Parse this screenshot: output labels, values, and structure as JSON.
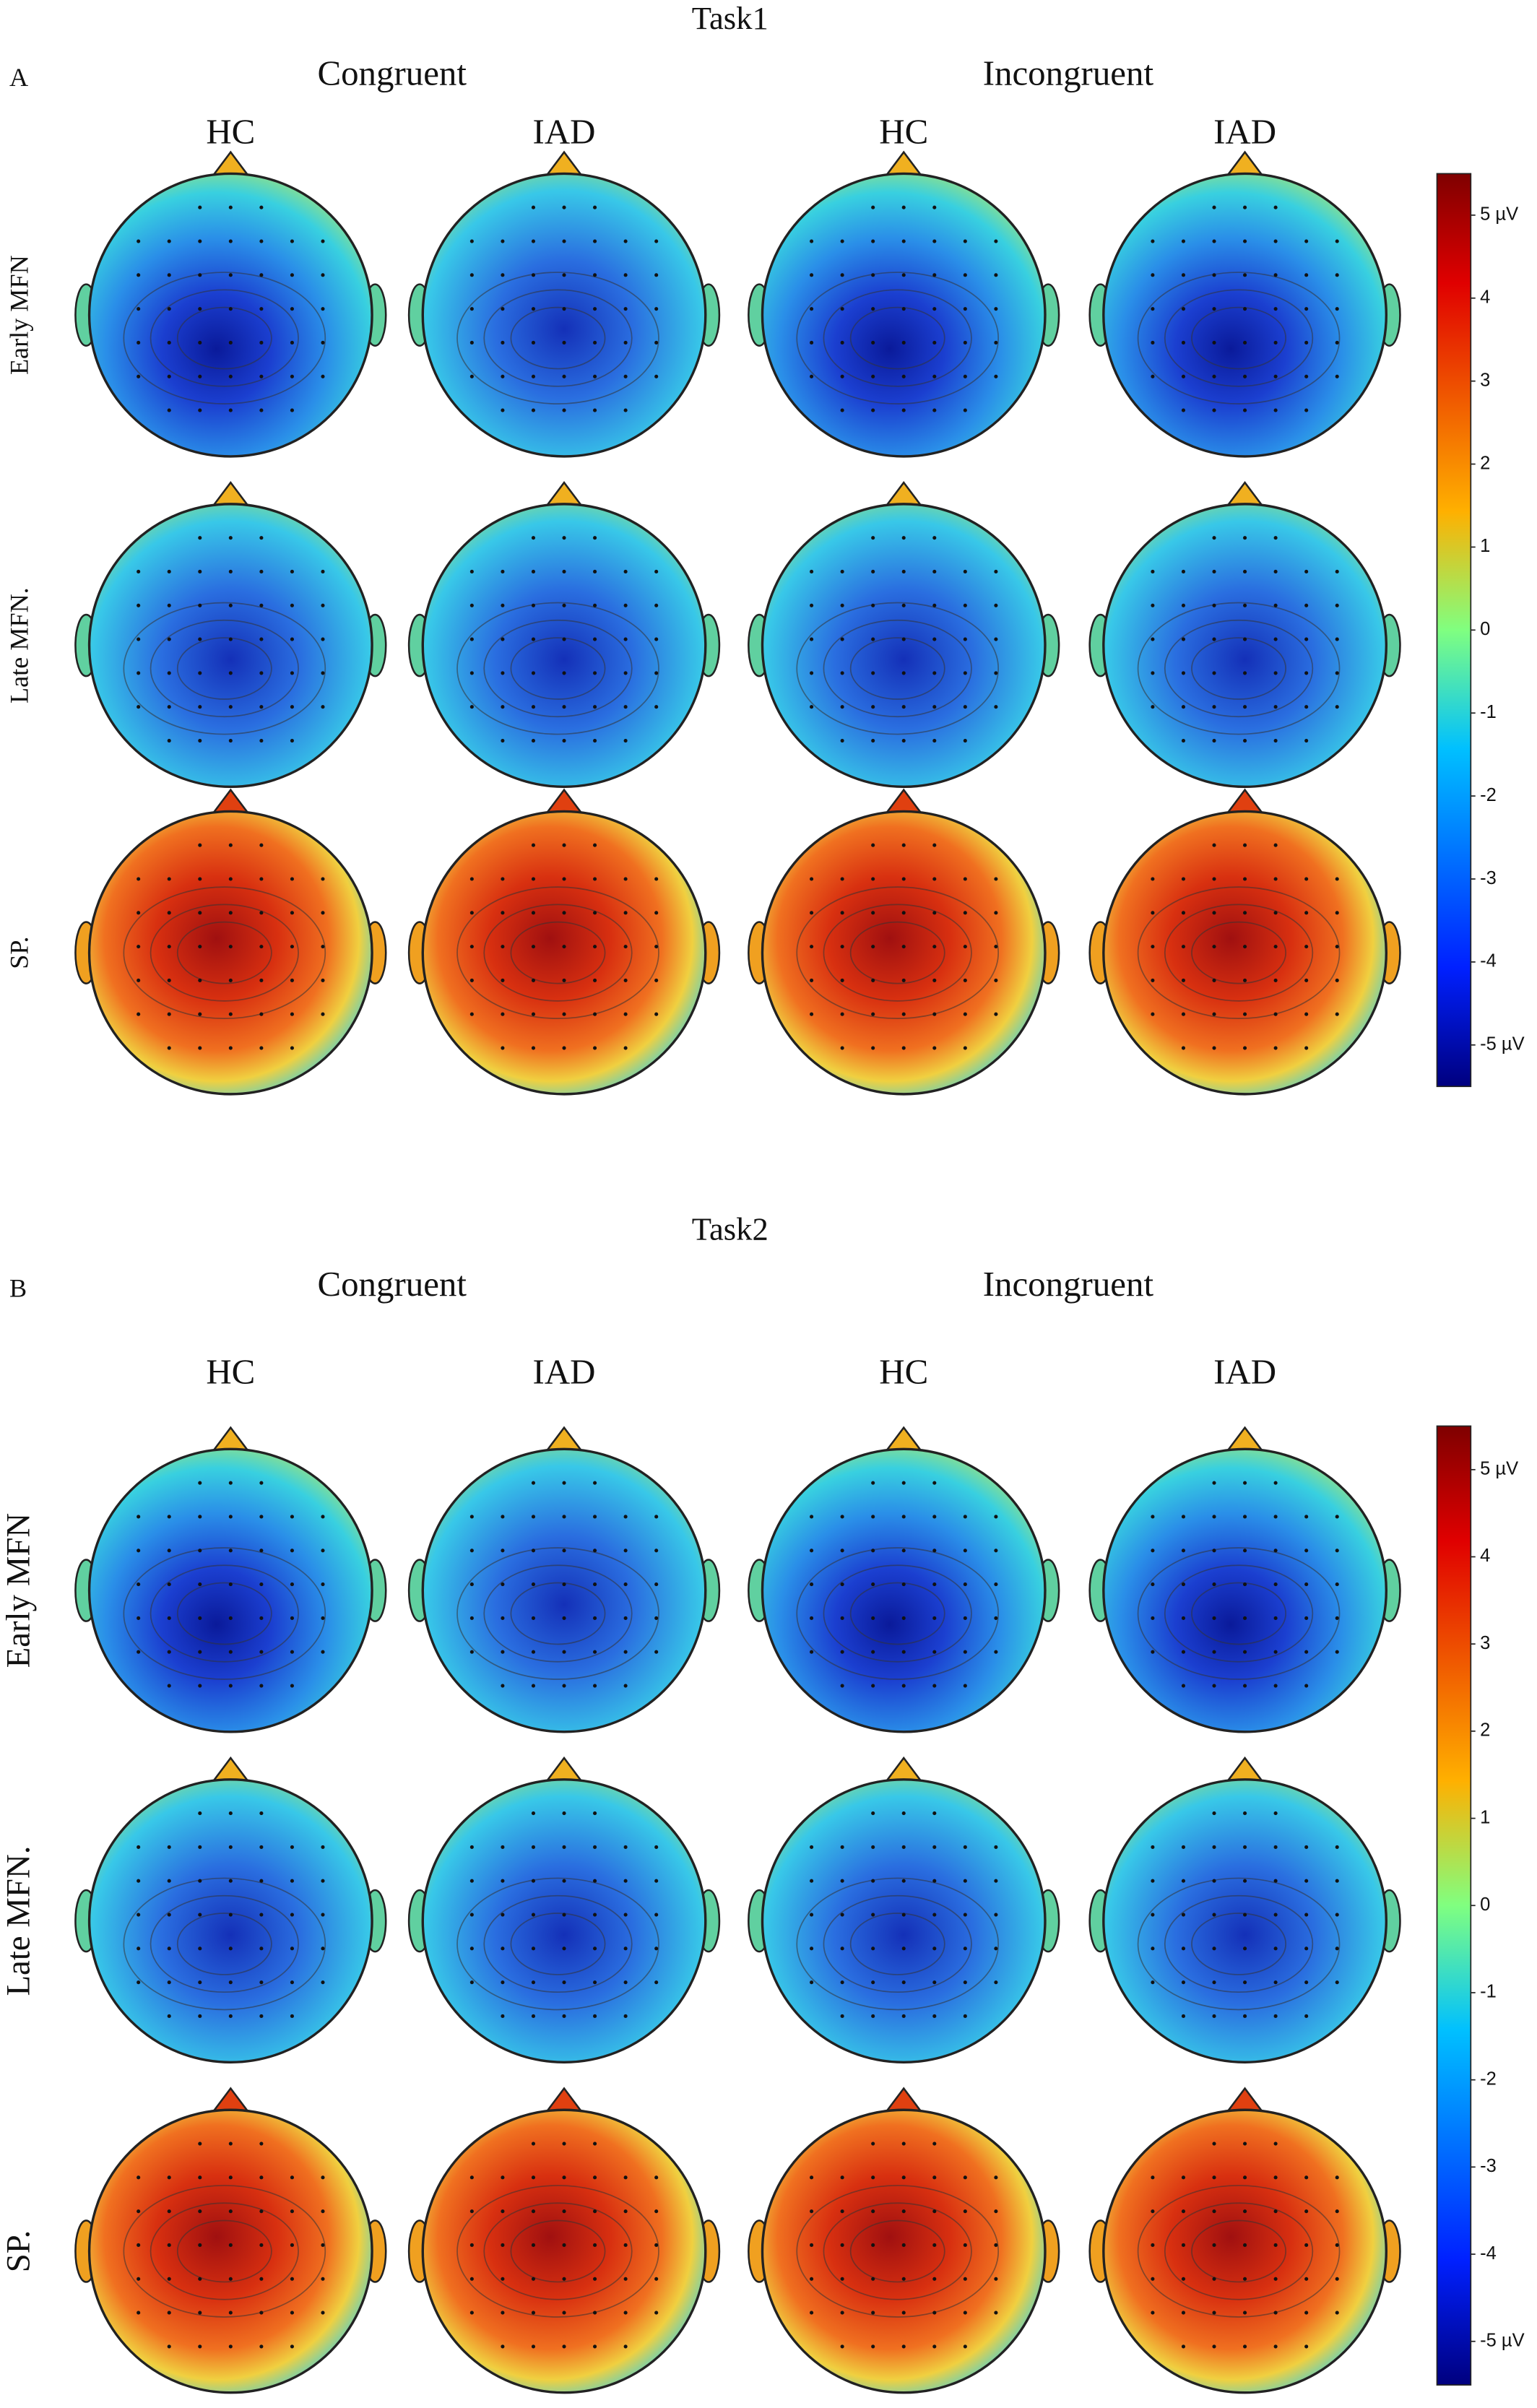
{
  "panels": [
    {
      "label": "A",
      "title": "Task1",
      "conditions": [
        "Congruent",
        "Incongruent"
      ],
      "groups": [
        "HC",
        "IAD",
        "HC",
        "IAD"
      ],
      "rows": [
        "Early MFN",
        "Late MFN.",
        "SP."
      ],
      "colorbar": {
        "ylim": [
          -5.5,
          5.5
        ],
        "yticks": [
          {
            "value": 5,
            "label": "5 µV"
          },
          4,
          3,
          2,
          1,
          0,
          -1,
          -2,
          -3,
          -4,
          {
            "value": -5,
            "label": "-5 µV"
          }
        ]
      }
    },
    {
      "label": "B",
      "title": "Task2",
      "conditions": [
        "Congruent",
        "Incongruent"
      ],
      "groups": [
        "HC",
        "IAD",
        "HC",
        "IAD"
      ],
      "rows": [
        "Early MFN",
        "Late MFN.",
        "SP."
      ],
      "colorbar": {
        "ylim": [
          -5.5,
          5.5
        ],
        "yticks": [
          {
            "value": 5,
            "label": "5 µV"
          },
          4,
          3,
          2,
          1,
          0,
          -1,
          -2,
          -3,
          -4,
          {
            "value": -5,
            "label": "-5 µV"
          }
        ]
      }
    }
  ]
}
